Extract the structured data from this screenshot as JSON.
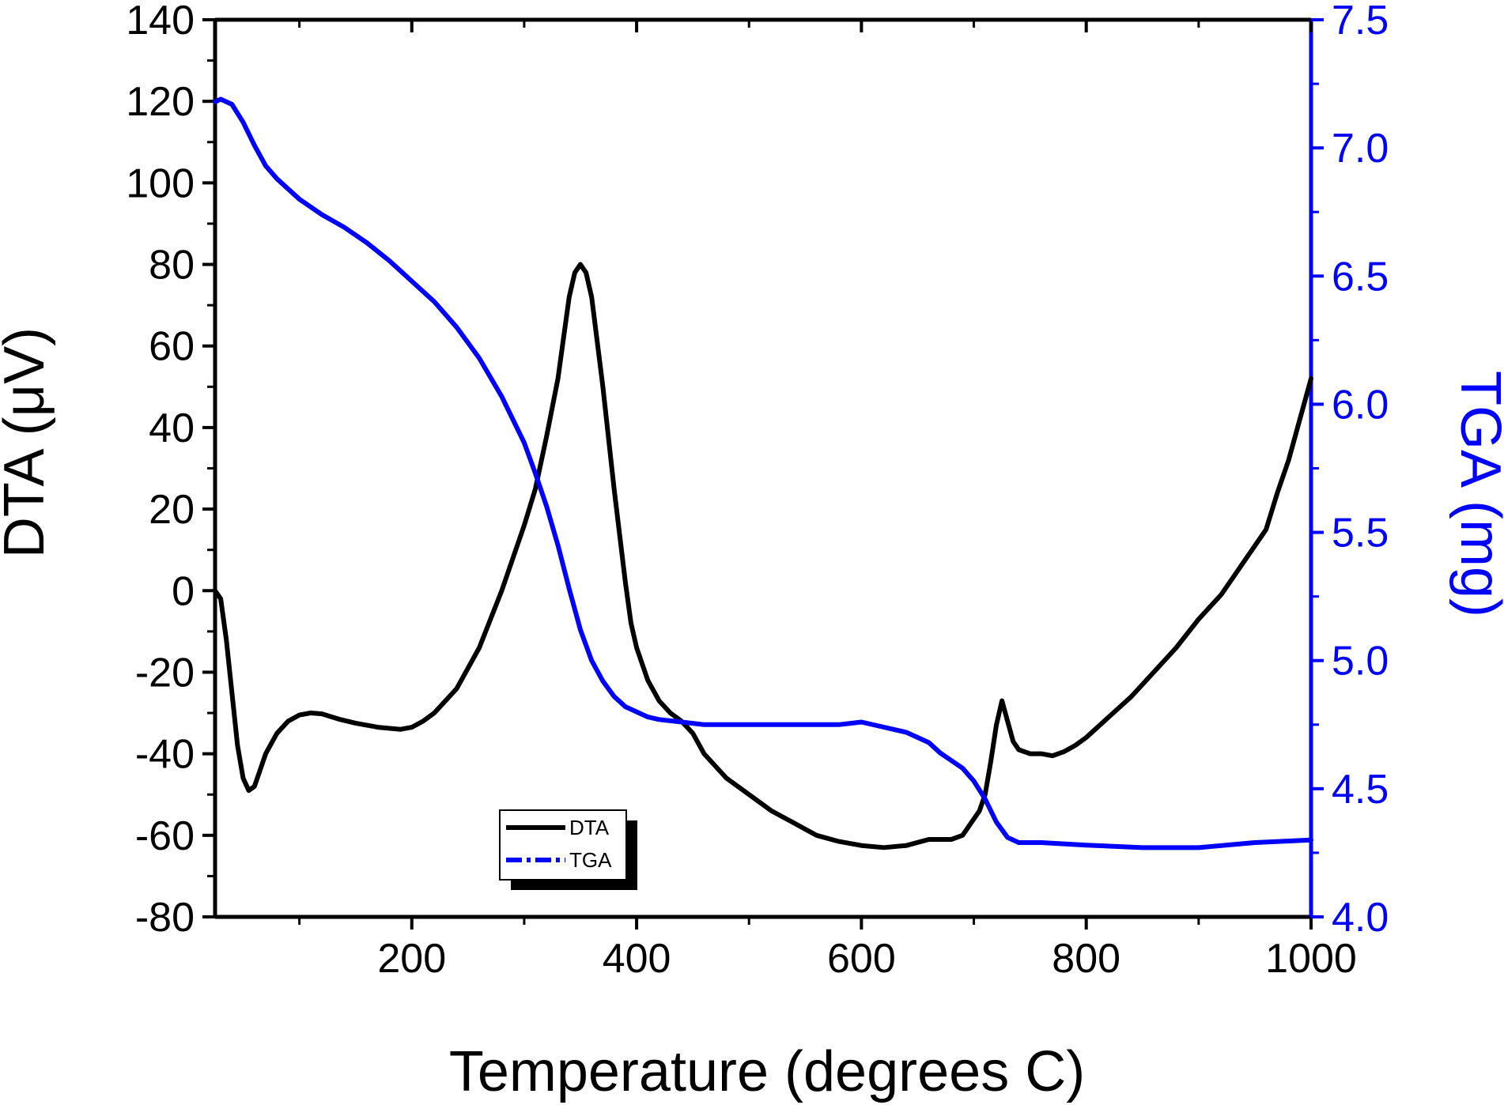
{
  "chart_data": {
    "type": "line",
    "title": "",
    "xlabel": "Temperature (degrees C)",
    "ylabel_left": "DTA (μV)",
    "ylabel_right": "TGA (mg)",
    "xlim": [
      25,
      1000
    ],
    "ylim_left": [
      -80,
      140
    ],
    "ylim_right": [
      4.0,
      7.5
    ],
    "x_ticks": [
      200,
      400,
      600,
      800,
      1000
    ],
    "y_left_ticks": [
      140,
      120,
      100,
      80,
      60,
      40,
      20,
      0,
      -20,
      -40,
      -60,
      -80
    ],
    "y_right_ticks": [
      7.5,
      7.0,
      6.5,
      6.0,
      5.5,
      5.0,
      4.5,
      4.0
    ],
    "grid": false,
    "legend_position": "bottom-center",
    "colors": {
      "DTA": "#000000",
      "TGA": "#0000ff",
      "axis_left": "#000000",
      "axis_right": "#0000ff"
    },
    "series": [
      {
        "name": "DTA",
        "axis": "left",
        "style": "solid",
        "x": [
          25,
          30,
          35,
          40,
          45,
          50,
          55,
          60,
          65,
          70,
          80,
          90,
          100,
          110,
          120,
          135,
          150,
          170,
          190,
          200,
          210,
          220,
          240,
          260,
          280,
          300,
          310,
          320,
          330,
          335,
          340,
          345,
          350,
          355,
          360,
          370,
          380,
          390,
          395,
          400,
          410,
          420,
          430,
          440,
          450,
          460,
          470,
          480,
          500,
          520,
          540,
          560,
          580,
          600,
          620,
          640,
          660,
          670,
          680,
          690,
          700,
          705,
          710,
          715,
          720,
          725,
          730,
          735,
          740,
          750,
          760,
          770,
          780,
          790,
          800,
          820,
          840,
          860,
          880,
          900,
          920,
          940,
          960,
          970,
          980,
          990,
          1000
        ],
        "values": [
          0,
          -2,
          -12,
          -25,
          -38,
          -46,
          -49,
          -48,
          -44,
          -40,
          -35,
          -32,
          -30.5,
          -30,
          -30.2,
          -31.5,
          -32.5,
          -33.5,
          -34,
          -33.5,
          -32,
          -30,
          -24,
          -14,
          0,
          16,
          25,
          38,
          52,
          62,
          72,
          78,
          80,
          78,
          72,
          50,
          25,
          2,
          -8,
          -14,
          -22,
          -27,
          -30,
          -32,
          -35,
          -40,
          -43,
          -46,
          -50,
          -54,
          -57,
          -60,
          -61.5,
          -62.5,
          -63,
          -62.5,
          -61,
          -61,
          -61,
          -60,
          -56,
          -54,
          -50,
          -42,
          -33,
          -27,
          -32,
          -37,
          -39,
          -40,
          -40,
          -40.5,
          -39.5,
          -38,
          -36,
          -31,
          -26,
          -20,
          -14,
          -7,
          -1,
          7,
          15,
          24,
          32,
          42,
          52
        ]
      },
      {
        "name": "TGA",
        "axis": "right",
        "style": "dash-dot",
        "x": [
          25,
          30,
          40,
          50,
          60,
          70,
          80,
          100,
          120,
          140,
          160,
          180,
          200,
          220,
          240,
          260,
          280,
          300,
          310,
          320,
          330,
          340,
          350,
          360,
          370,
          380,
          390,
          400,
          410,
          420,
          440,
          460,
          480,
          500,
          520,
          540,
          560,
          580,
          600,
          620,
          640,
          660,
          670,
          680,
          690,
          700,
          710,
          720,
          730,
          740,
          760,
          800,
          850,
          900,
          950,
          1000
        ],
        "values": [
          7.18,
          7.19,
          7.17,
          7.1,
          7.01,
          6.93,
          6.88,
          6.8,
          6.74,
          6.69,
          6.63,
          6.56,
          6.48,
          6.4,
          6.3,
          6.18,
          6.03,
          5.85,
          5.73,
          5.6,
          5.45,
          5.28,
          5.12,
          5.0,
          4.92,
          4.86,
          4.82,
          4.8,
          4.78,
          4.77,
          4.76,
          4.75,
          4.75,
          4.75,
          4.75,
          4.75,
          4.75,
          4.75,
          4.76,
          4.74,
          4.72,
          4.68,
          4.64,
          4.61,
          4.58,
          4.53,
          4.46,
          4.37,
          4.31,
          4.29,
          4.29,
          4.28,
          4.27,
          4.27,
          4.29,
          4.3
        ]
      }
    ]
  }
}
